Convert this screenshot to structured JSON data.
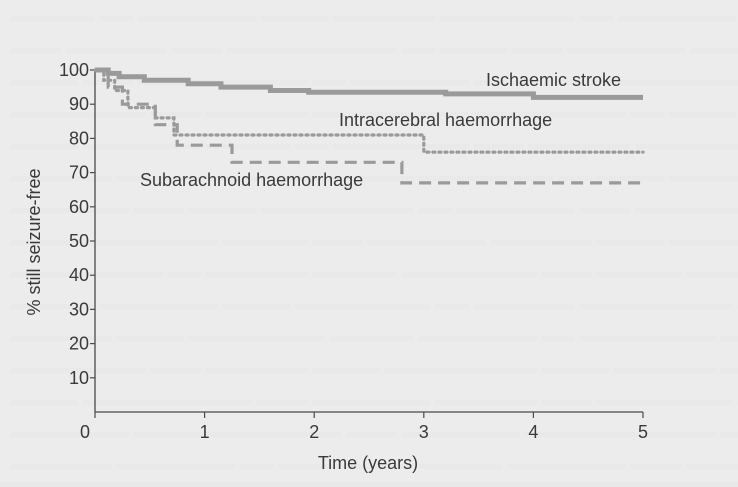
{
  "chart_data": {
    "type": "line",
    "xlabel": "Time (years)",
    "ylabel": "% still seizure-free",
    "xlim": [
      0,
      5
    ],
    "ylim": [
      0,
      100
    ],
    "xticks": [
      "0",
      "1",
      "2",
      "3",
      "4",
      "5"
    ],
    "yticks": [
      "10",
      "20",
      "30",
      "40",
      "50",
      "60",
      "70",
      "80",
      "90",
      "100"
    ],
    "grid": false,
    "series": [
      {
        "name": "Ischaemic stroke",
        "style": "solid",
        "color": "#9a9a9a",
        "x": [
          0,
          0.12,
          0.12,
          0.22,
          0.22,
          0.45,
          0.45,
          0.85,
          0.85,
          1.15,
          1.15,
          1.6,
          1.6,
          1.95,
          1.95,
          3.2,
          3.2,
          4.0,
          4.0,
          5.0
        ],
        "y": [
          100,
          100,
          99,
          99,
          98,
          98,
          97,
          97,
          96,
          96,
          95,
          95,
          94,
          94,
          93.5,
          93.5,
          93,
          93,
          92,
          92
        ]
      },
      {
        "name": "Intracerebral haemorrhage",
        "style": "dotted",
        "color": "#9a9a9a",
        "x": [
          0,
          0.08,
          0.08,
          0.18,
          0.18,
          0.3,
          0.3,
          0.55,
          0.55,
          0.72,
          0.72,
          3.0,
          3.0,
          5.0
        ],
        "y": [
          100,
          100,
          97,
          97,
          94,
          94,
          89,
          89,
          86,
          86,
          81,
          81,
          76,
          76
        ]
      },
      {
        "name": "Subarachnoid haemorrhage",
        "style": "dashed",
        "color": "#9a9a9a",
        "x": [
          0,
          0.12,
          0.12,
          0.25,
          0.25,
          0.55,
          0.55,
          0.75,
          0.75,
          1.25,
          1.25,
          2.8,
          2.8,
          5.0
        ],
        "y": [
          100,
          100,
          95,
          95,
          90,
          90,
          84,
          84,
          78,
          78,
          73,
          73,
          67,
          67
        ]
      }
    ],
    "annotations": [
      {
        "text": "Ischaemic stroke",
        "series": 0
      },
      {
        "text": "Intracerebral haemorrhage",
        "series": 1
      },
      {
        "text": "Subarachnoid haemorrhage",
        "series": 2
      }
    ]
  }
}
